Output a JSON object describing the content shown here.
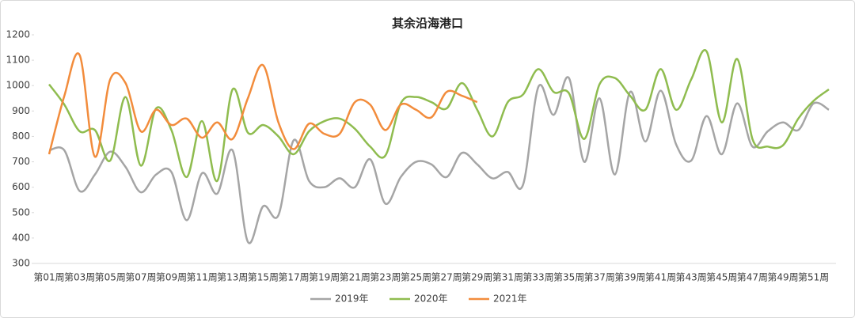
{
  "chart_data": {
    "type": "line",
    "title": "其余沿海港口",
    "categories": [
      "第01周",
      null,
      "第03周",
      null,
      "第05周",
      null,
      "第07周",
      null,
      "第09周",
      null,
      "第11周",
      null,
      "第13周",
      null,
      "第15周",
      null,
      "第17周",
      null,
      "第19周",
      null,
      "第21周",
      null,
      "第23周",
      null,
      "第25周",
      null,
      "第27周",
      null,
      "第29周",
      null,
      "第31周",
      null,
      "第33周",
      null,
      "第35周",
      null,
      "第37周",
      null,
      "第39周",
      null,
      "第41周",
      null,
      "第43周",
      null,
      "第45周",
      null,
      "第47周",
      null,
      "第49周",
      null,
      "第51周",
      null
    ],
    "series": [
      {
        "name": "2019年",
        "color": "#a5a5a5",
        "values": [
          745,
          745,
          585,
          650,
          740,
          680,
          580,
          650,
          660,
          470,
          655,
          575,
          745,
          385,
          525,
          490,
          785,
          625,
          600,
          635,
          600,
          710,
          535,
          640,
          700,
          690,
          640,
          735,
          690,
          635,
          660,
          610,
          995,
          885,
          1030,
          700,
          950,
          650,
          975,
          780,
          980,
          770,
          705,
          880,
          730,
          930,
          760,
          820,
          855,
          825,
          930,
          905
        ]
      },
      {
        "name": "2020年",
        "color": "#8fbc4f",
        "values": [
          1005,
          925,
          820,
          825,
          705,
          955,
          685,
          910,
          825,
          640,
          860,
          625,
          985,
          815,
          845,
          800,
          730,
          820,
          860,
          870,
          830,
          760,
          725,
          930,
          955,
          935,
          910,
          1010,
          905,
          800,
          935,
          965,
          1065,
          975,
          970,
          790,
          1005,
          1030,
          960,
          905,
          1065,
          905,
          1025,
          1135,
          855,
          1105,
          790,
          760,
          765,
          870,
          940,
          985
        ]
      },
      {
        "name": "2021年",
        "color": "#f28c3c",
        "values": [
          730,
          960,
          1120,
          720,
          1025,
          1010,
          820,
          905,
          845,
          870,
          795,
          855,
          790,
          950,
          1080,
          855,
          750,
          850,
          810,
          810,
          935,
          925,
          825,
          925,
          905,
          875,
          975,
          960,
          935,
          null,
          null,
          null,
          null,
          null,
          null,
          null,
          null,
          null,
          null,
          null,
          null,
          null,
          null,
          null,
          null,
          null,
          null,
          null,
          null,
          null,
          null,
          null
        ]
      }
    ],
    "ylim": [
      300,
      1200
    ],
    "yticks": [
      300,
      400,
      500,
      600,
      700,
      800,
      900,
      1000,
      1100,
      1200
    ],
    "legend": "bottom"
  }
}
